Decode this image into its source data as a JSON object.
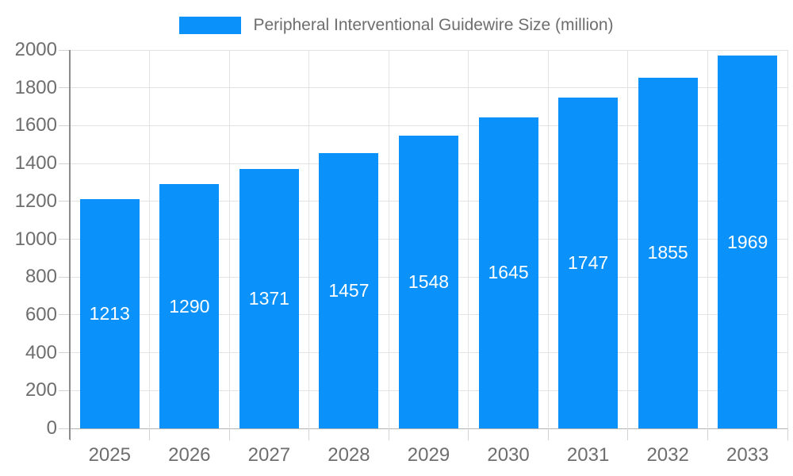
{
  "chart_data": {
    "type": "bar",
    "title": "Peripheral Interventional Guidewire Size (million)",
    "categories": [
      "2025",
      "2026",
      "2027",
      "2028",
      "2029",
      "2030",
      "2031",
      "2032",
      "2033"
    ],
    "values": [
      1213,
      1290,
      1371,
      1457,
      1548,
      1645,
      1747,
      1855,
      1969
    ],
    "value_labels": [
      "1213",
      "1290",
      "1371",
      "1457",
      "1548",
      "1645",
      "1747",
      "1855",
      "1969"
    ],
    "value_label_position": "inside-center",
    "xlabel": "",
    "ylabel": "",
    "ylim": [
      0,
      2000
    ],
    "ytick_interval": 200,
    "yticks": [
      0,
      200,
      400,
      600,
      800,
      1000,
      1200,
      1400,
      1600,
      1800,
      2000
    ],
    "ytick_labels": [
      "0",
      "200",
      "400",
      "600",
      "800",
      "1000",
      "1200",
      "1400",
      "1600",
      "1800",
      "2000"
    ],
    "grid": true,
    "grid_directions": "both",
    "legend_position": "top-center",
    "legend_marker": "rectangle",
    "colors": {
      "bar": "#0A91FA",
      "bar_label": "#FFFFFF",
      "axis_label": "#6E6E6E",
      "legend_text": "#6E6E6E",
      "gridline": "#E3E3E3",
      "tick": "#D2D2D2",
      "axis_line": "#8C8C8C",
      "baseline": "#B3B3B3",
      "background": "#FFFFFF"
    }
  }
}
